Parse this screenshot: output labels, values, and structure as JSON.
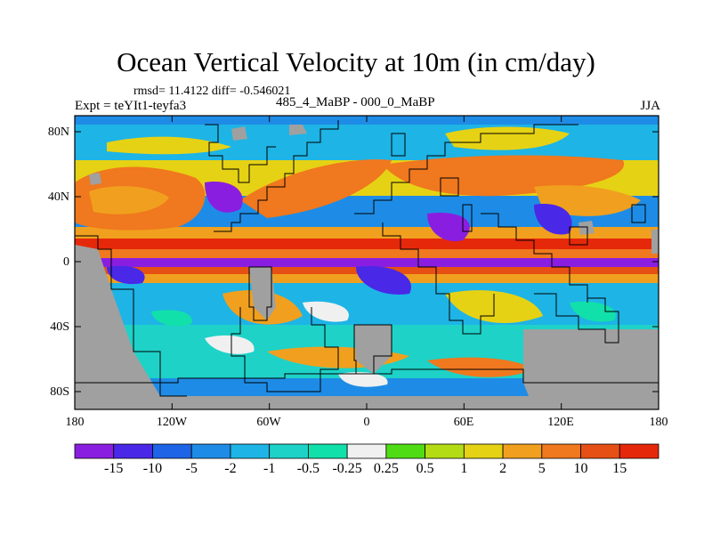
{
  "title": "Ocean Vertical Velocity at 10m (in cm/day)",
  "stats": "rmsd= 11.4122  diff= -0.546021",
  "experiment": "Expt = teYIt1-teyfa3",
  "subtitle": "485_4_MaBP - 000_0_MaBP",
  "season": "JJA",
  "map": {
    "lat_ticks": [
      "80N",
      "40N",
      "0",
      "40S",
      "80S"
    ],
    "lon_ticks": [
      "180",
      "120W",
      "60W",
      "0",
      "60E",
      "120E",
      "180"
    ],
    "land_color": "#a0a0a0"
  },
  "colorbar": {
    "labels": [
      "-15",
      "-10",
      "-5",
      "-2",
      "-1",
      "-0.5",
      "-0.25",
      "0.25",
      "0.5",
      "1",
      "2",
      "5",
      "10",
      "15"
    ],
    "colors": [
      "#8a1ee0",
      "#4a28e8",
      "#1e64e6",
      "#1e8ce6",
      "#1eb4e6",
      "#1ed2c8",
      "#12e0aa",
      "#f0f0f0",
      "#50dc14",
      "#b4dc14",
      "#e6d214",
      "#f0a01e",
      "#f0781e",
      "#e65014",
      "#e6280a"
    ]
  }
}
